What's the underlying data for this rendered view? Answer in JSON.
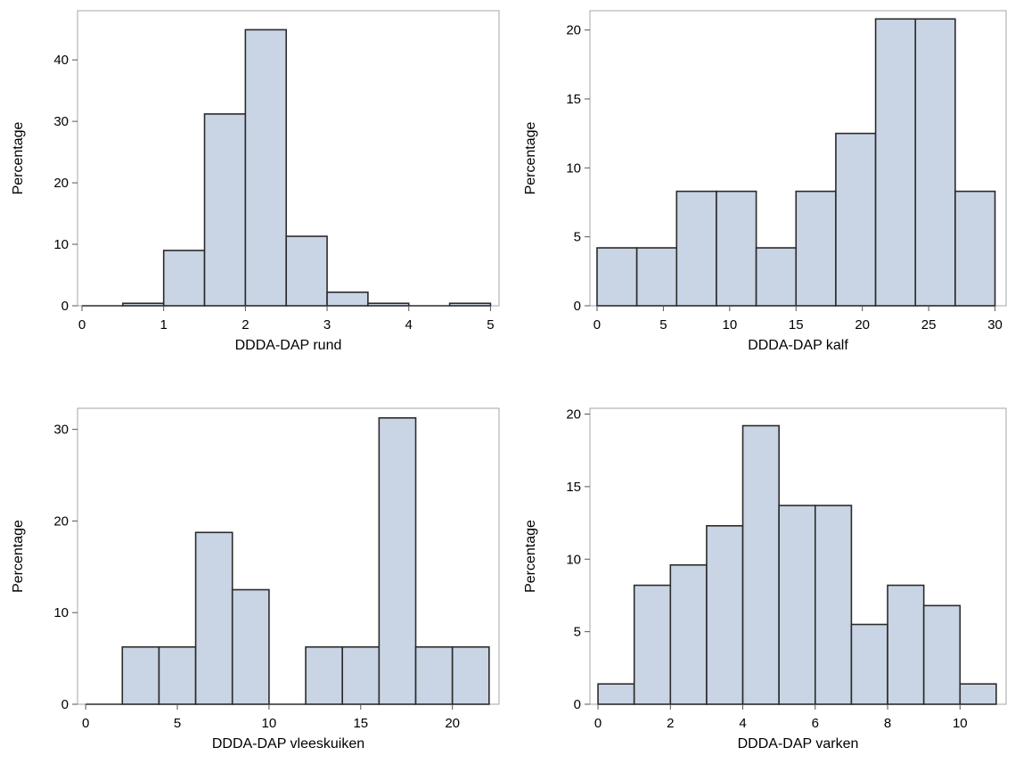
{
  "colors": {
    "bar_fill": "#c9d4e4",
    "bar_stroke": "#2b2b2b",
    "frame": "#a6a6a6",
    "axis": "#555555"
  },
  "chart_data": [
    {
      "type": "bar",
      "title": "",
      "xlabel": "DDDA-DAP rund",
      "ylabel": "Percentage",
      "xlim": [
        0,
        5.05
      ],
      "ylim": [
        0,
        48
      ],
      "xticks": [
        0,
        1,
        2,
        3,
        4,
        5
      ],
      "yticks": [
        0,
        10,
        20,
        30,
        40
      ],
      "bins": [
        {
          "x0": 0.0,
          "x1": 0.5,
          "value": 0
        },
        {
          "x0": 0.5,
          "x1": 1.0,
          "value": 0.4
        },
        {
          "x0": 1.0,
          "x1": 1.5,
          "value": 9.0
        },
        {
          "x0": 1.5,
          "x1": 2.0,
          "value": 31.2
        },
        {
          "x0": 2.0,
          "x1": 2.5,
          "value": 44.9
        },
        {
          "x0": 2.5,
          "x1": 3.0,
          "value": 11.3
        },
        {
          "x0": 3.0,
          "x1": 3.5,
          "value": 2.2
        },
        {
          "x0": 3.5,
          "x1": 4.0,
          "value": 0.4
        },
        {
          "x0": 4.0,
          "x1": 4.5,
          "value": 0
        },
        {
          "x0": 4.5,
          "x1": 5.0,
          "value": 0.4
        }
      ],
      "grid": false,
      "legend": "none"
    },
    {
      "type": "bar",
      "title": "",
      "xlabel": "DDDA-DAP kalf",
      "ylabel": "Percentage",
      "xlim": [
        -0.2,
        30.5
      ],
      "ylim": [
        0,
        21.4
      ],
      "xticks": [
        0,
        5,
        10,
        15,
        20,
        25,
        30
      ],
      "yticks": [
        0,
        5,
        10,
        15,
        20
      ],
      "bins": [
        {
          "x0": 0,
          "x1": 3,
          "value": 4.2
        },
        {
          "x0": 3,
          "x1": 6,
          "value": 4.2
        },
        {
          "x0": 6,
          "x1": 9,
          "value": 8.3
        },
        {
          "x0": 9,
          "x1": 12,
          "value": 8.3
        },
        {
          "x0": 12,
          "x1": 15,
          "value": 4.2
        },
        {
          "x0": 15,
          "x1": 18,
          "value": 8.3
        },
        {
          "x0": 18,
          "x1": 21,
          "value": 12.5
        },
        {
          "x0": 21,
          "x1": 24,
          "value": 20.8
        },
        {
          "x0": 24,
          "x1": 27,
          "value": 20.8
        },
        {
          "x0": 27,
          "x1": 30,
          "value": 8.3
        }
      ],
      "grid": false,
      "legend": "none"
    },
    {
      "type": "bar",
      "title": "",
      "xlabel": "DDDA-DAP vleeskuiken",
      "ylabel": "Percentage",
      "xlim": [
        -0.2,
        22.3
      ],
      "ylim": [
        0,
        32.3
      ],
      "xticks": [
        0,
        5,
        10,
        15,
        20
      ],
      "yticks": [
        0,
        10,
        20,
        30
      ],
      "bins": [
        {
          "x0": 0,
          "x1": 2,
          "value": 0
        },
        {
          "x0": 2,
          "x1": 4,
          "value": 6.25
        },
        {
          "x0": 4,
          "x1": 6,
          "value": 6.25
        },
        {
          "x0": 6,
          "x1": 8,
          "value": 18.75
        },
        {
          "x0": 8,
          "x1": 10,
          "value": 12.5
        },
        {
          "x0": 10,
          "x1": 12,
          "value": 0
        },
        {
          "x0": 12,
          "x1": 14,
          "value": 6.25
        },
        {
          "x0": 14,
          "x1": 16,
          "value": 6.25
        },
        {
          "x0": 16,
          "x1": 18,
          "value": 31.25
        },
        {
          "x0": 18,
          "x1": 20,
          "value": 6.25
        },
        {
          "x0": 20,
          "x1": 22,
          "value": 6.25
        }
      ],
      "grid": false,
      "legend": "none"
    },
    {
      "type": "bar",
      "title": "",
      "xlabel": "DDDA-DAP varken",
      "ylabel": "Percentage",
      "xlim": [
        -0.1,
        11.15
      ],
      "ylim": [
        0,
        20.4
      ],
      "xticks": [
        0,
        2,
        4,
        6,
        8,
        10
      ],
      "yticks": [
        0,
        5,
        10,
        15,
        20
      ],
      "bins": [
        {
          "x0": 0,
          "x1": 1,
          "value": 1.4
        },
        {
          "x0": 1,
          "x1": 2,
          "value": 8.2
        },
        {
          "x0": 2,
          "x1": 3,
          "value": 9.6
        },
        {
          "x0": 3,
          "x1": 4,
          "value": 12.3
        },
        {
          "x0": 4,
          "x1": 5,
          "value": 19.2
        },
        {
          "x0": 5,
          "x1": 6,
          "value": 13.7
        },
        {
          "x0": 6,
          "x1": 7,
          "value": 13.7
        },
        {
          "x0": 7,
          "x1": 8,
          "value": 5.5
        },
        {
          "x0": 8,
          "x1": 9,
          "value": 8.2
        },
        {
          "x0": 9,
          "x1": 10,
          "value": 6.8
        },
        {
          "x0": 10,
          "x1": 11,
          "value": 1.4
        }
      ],
      "grid": false,
      "legend": "none"
    }
  ]
}
